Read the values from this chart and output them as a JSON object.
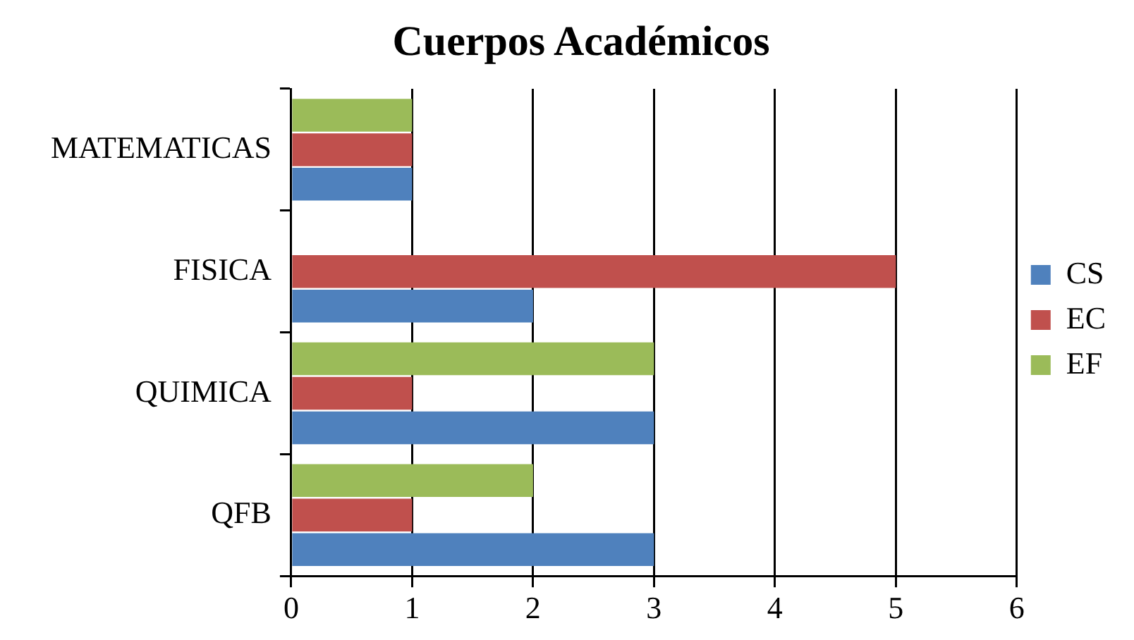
{
  "chart_data": {
    "type": "bar",
    "title": "Cuerpos Académicos",
    "orientation": "horizontal",
    "categories": [
      "MATEMATICAS",
      "FISICA",
      "QUIMICA",
      "QFB"
    ],
    "series": [
      {
        "name": "CS",
        "color": "#4f81bd",
        "values": [
          1,
          2,
          3,
          3
        ]
      },
      {
        "name": "EC",
        "color": "#c0504d",
        "values": [
          1,
          5,
          1,
          1
        ]
      },
      {
        "name": "EF",
        "color": "#9bbb59",
        "values": [
          1,
          0,
          3,
          2
        ]
      }
    ],
    "xlim": [
      0,
      6
    ],
    "xticks": [
      0,
      1,
      2,
      3,
      4,
      5,
      6
    ],
    "grid": "x",
    "legend": "right"
  }
}
